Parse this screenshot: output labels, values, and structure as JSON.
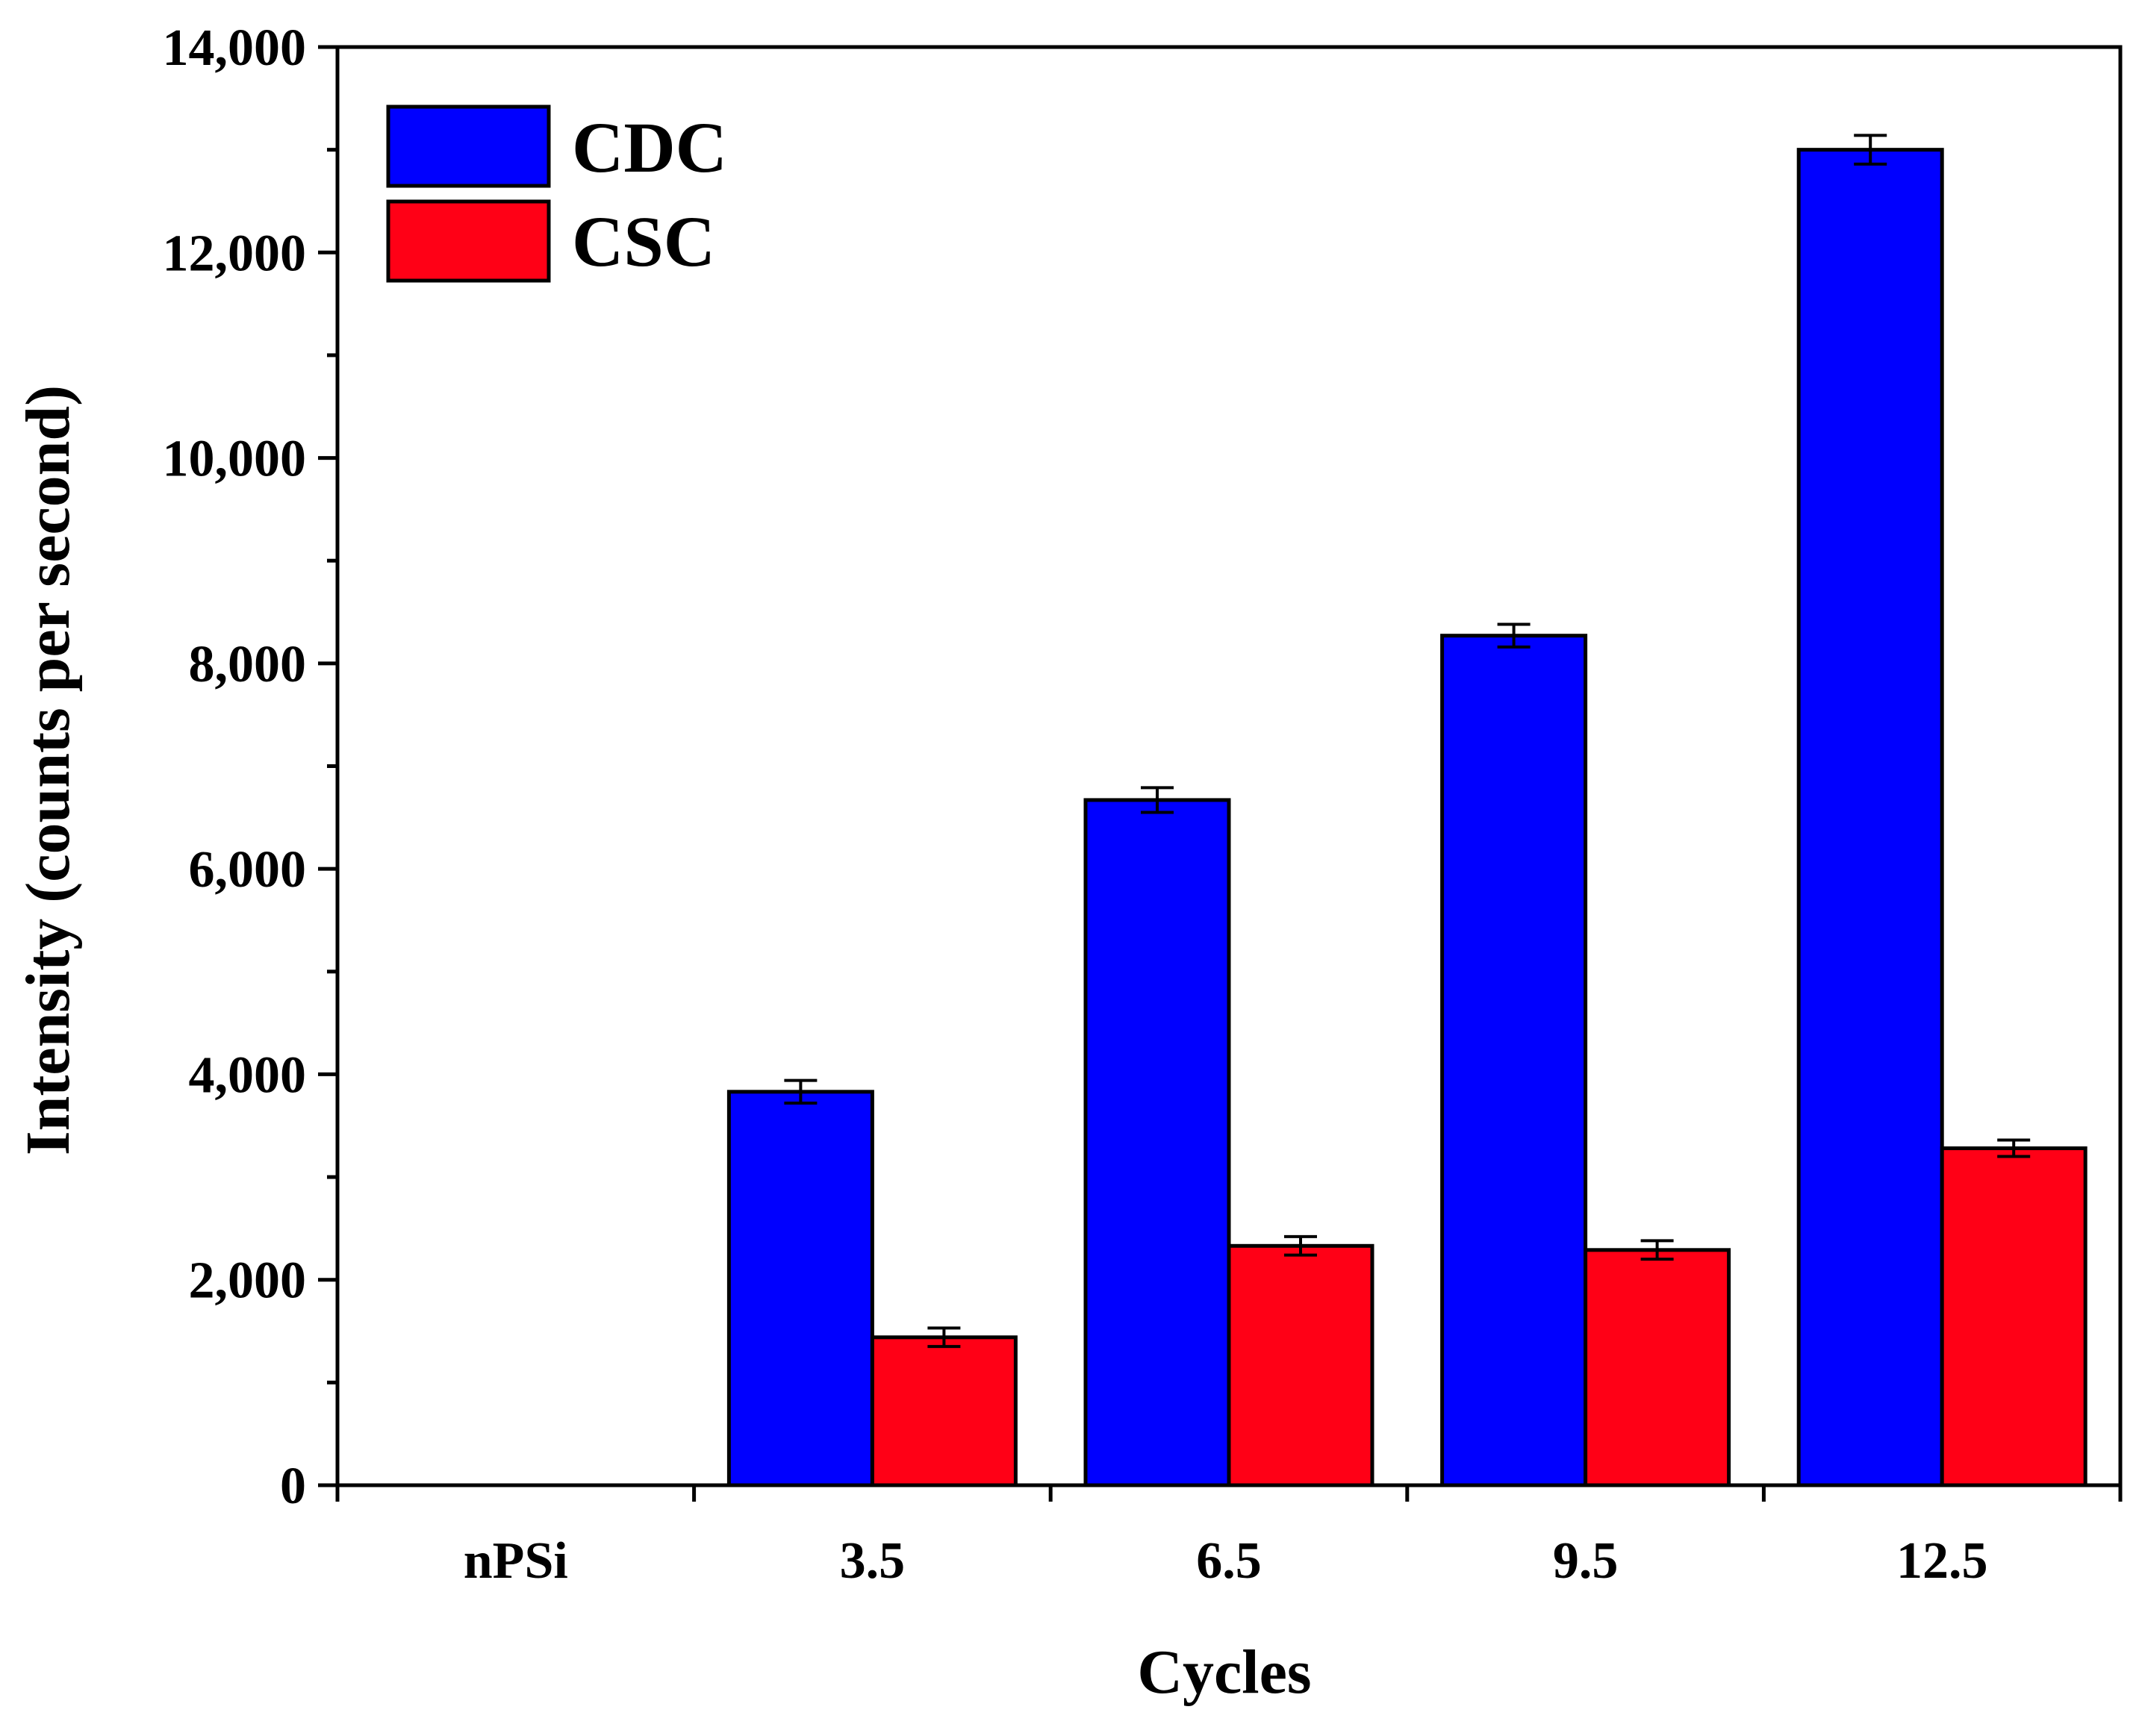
{
  "colors": {
    "CDC": "#0000ff",
    "CSC": "#ff0016",
    "axis": "#000000"
  },
  "chart_data": {
    "type": "bar",
    "title": "",
    "xlabel": "Cycles",
    "ylabel": "Intensity (counts per second)",
    "categories": [
      "nPSi",
      "3.5",
      "6.5",
      "9.5",
      "12.5"
    ],
    "ylim": [
      0,
      14000
    ],
    "yticks": [
      0,
      2000,
      4000,
      6000,
      8000,
      10000,
      12000,
      14000
    ],
    "ytick_labels": [
      "0",
      "2,000",
      "4,000",
      "6,000",
      "8,000",
      "10,000",
      "12,000",
      "14,000"
    ],
    "y_minor_step": 1000,
    "legend_position": "top-left",
    "series": [
      {
        "name": "CDC",
        "values": [
          0,
          3830,
          6670,
          8270,
          13000
        ],
        "errors": [
          0,
          110,
          120,
          110,
          140
        ]
      },
      {
        "name": "CSC",
        "values": [
          0,
          1440,
          2330,
          2290,
          3280
        ],
        "errors": [
          0,
          90,
          90,
          90,
          80
        ]
      }
    ]
  }
}
